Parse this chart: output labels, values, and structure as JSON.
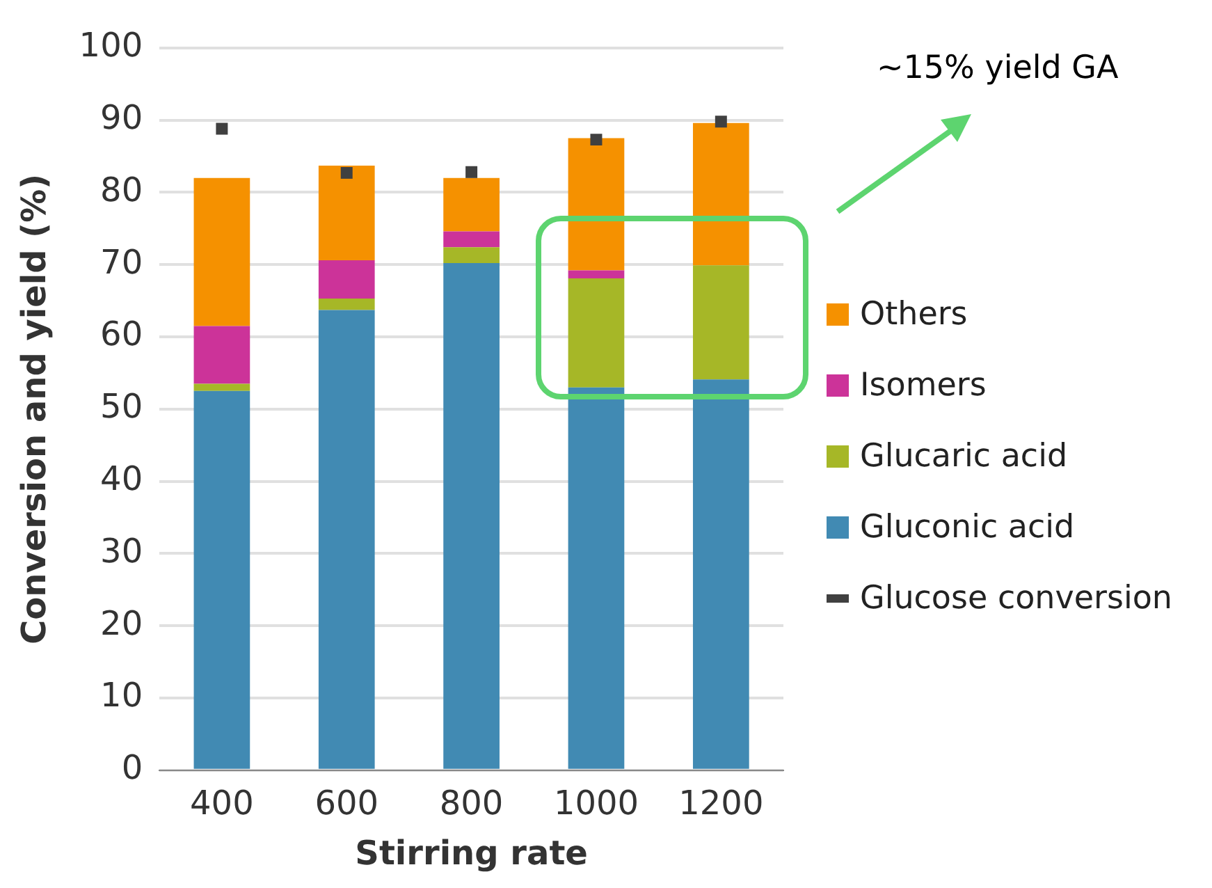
{
  "chart_data": {
    "type": "bar",
    "xlabel": "Stirring rate",
    "ylabel": "Conversion and yield (%)",
    "categories": [
      "400",
      "600",
      "800",
      "1000",
      "1200"
    ],
    "series": [
      {
        "name": "Gluconic acid",
        "color": "#418ab3",
        "values": [
          52.5,
          63.7,
          70.2,
          53,
          54.1
        ]
      },
      {
        "name": "Glucaric acid",
        "color": "#a6b727",
        "values": [
          1,
          1.6,
          2.2,
          15.1,
          15.8
        ]
      },
      {
        "name": "Isomers",
        "color": "#cc3399",
        "values": [
          8,
          5.3,
          2.2,
          1.1,
          0
        ]
      },
      {
        "name": "Others",
        "color": "#f59100",
        "values": [
          20.5,
          13.1,
          7.4,
          18.3,
          19.7
        ]
      },
      {
        "name": "Glucose conversion",
        "type": "scatter",
        "color": "#404040",
        "values": [
          88.8,
          82.7,
          82.8,
          87.3,
          89.8
        ]
      }
    ],
    "stacked": true,
    "marker": "square",
    "ylim": [
      0,
      100
    ],
    "yticks": [
      0,
      10,
      20,
      30,
      40,
      50,
      60,
      70,
      80,
      90,
      100
    ],
    "grid": "y",
    "legend": "right",
    "annotations": [
      "~15% yield GA"
    ]
  }
}
